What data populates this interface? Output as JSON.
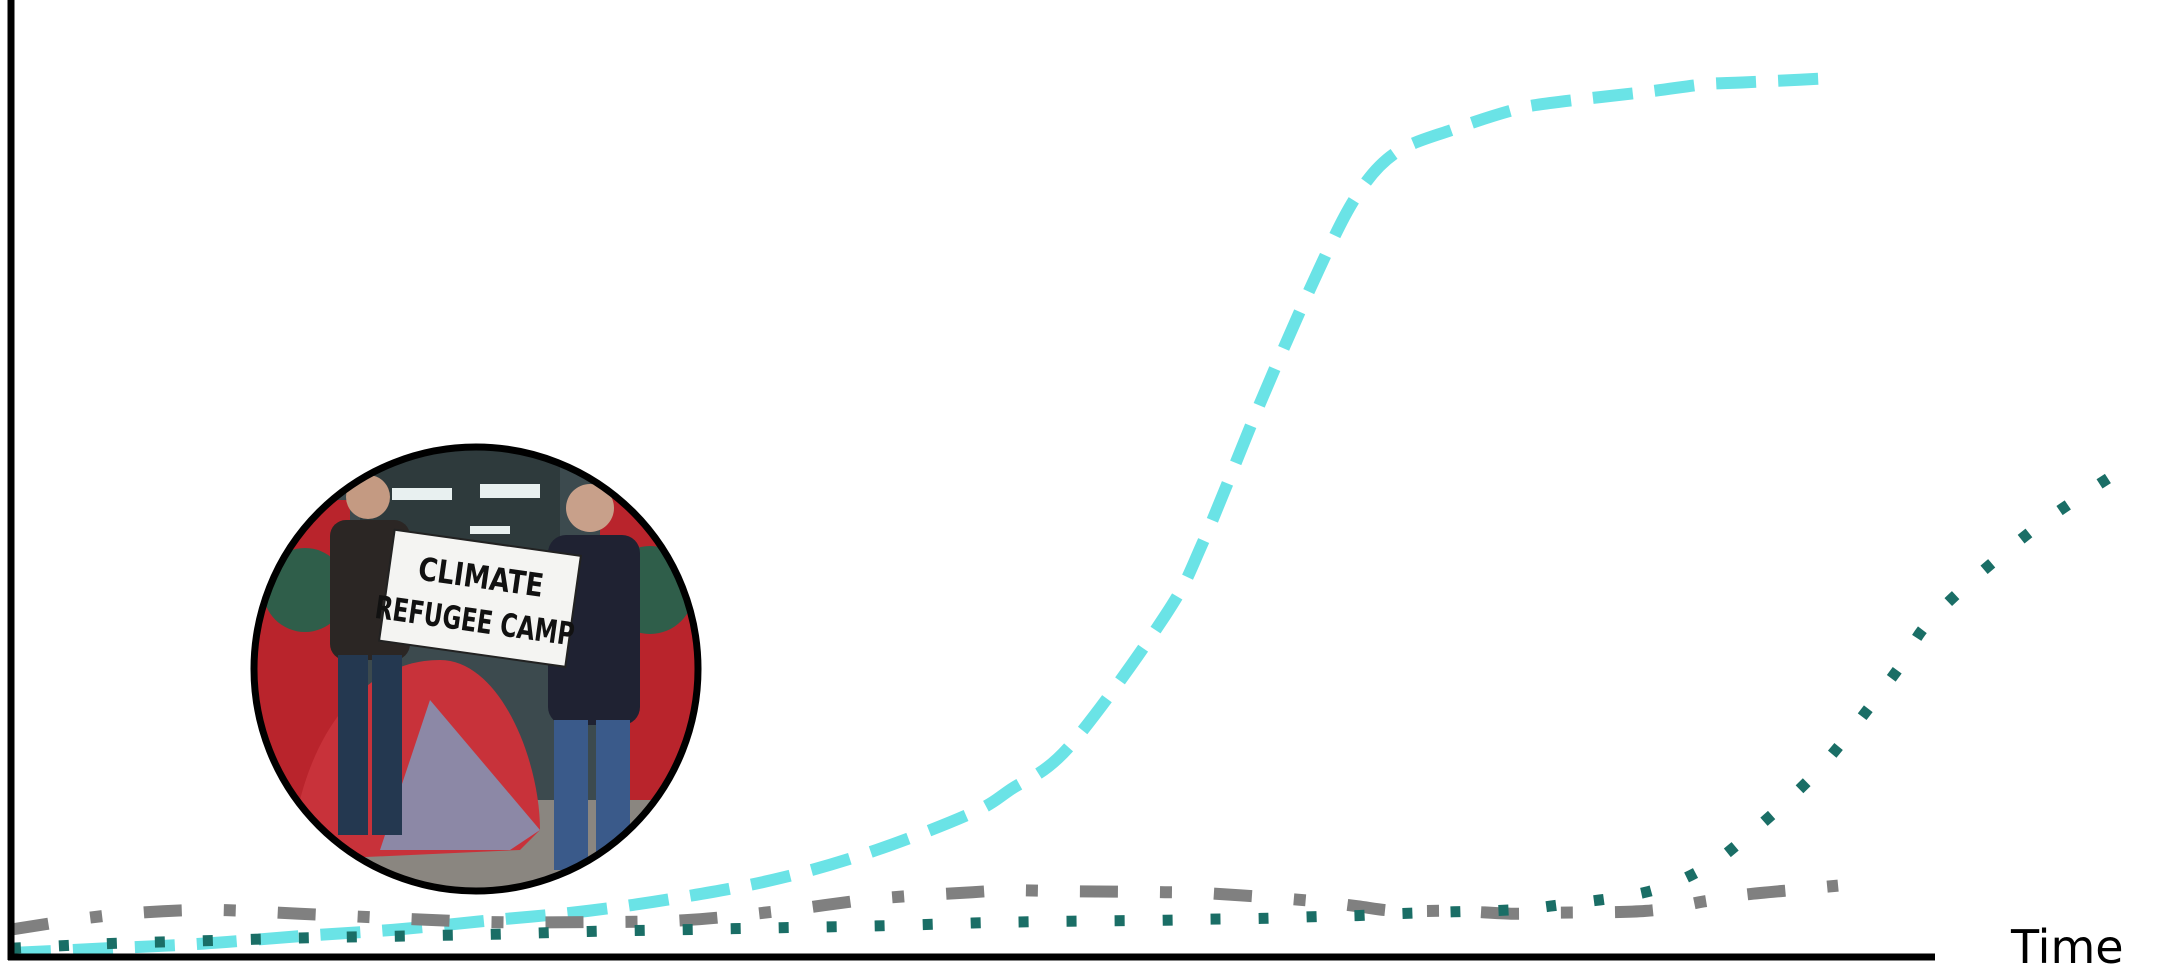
{
  "chart_data": {
    "type": "line",
    "xlabel": "Time",
    "ylabel": "",
    "title": "",
    "x": [
      0,
      5,
      10,
      15,
      20,
      25,
      30,
      35,
      40,
      45,
      50,
      52,
      55,
      60,
      62,
      65,
      68,
      70,
      72,
      75,
      78,
      80,
      85,
      88,
      90,
      93,
      95,
      98,
      100,
      105,
      110
    ],
    "xlim": [
      0,
      112
    ],
    "ylim": [
      0,
      100
    ],
    "grid": false,
    "legend": "none",
    "series": [
      {
        "style": "dashed",
        "color": "#6ae3e6",
        "values": [
          0,
          0.5,
          1,
          1.8,
          2.5,
          3.5,
          4.5,
          6,
          8,
          11,
          15,
          17.5,
          22,
          36,
          44,
          59,
          73,
          81,
          85.5,
          88,
          90,
          90.8,
          92,
          92.8,
          93,
          93.3,
          93.5,
          null,
          null,
          null,
          null
        ]
      },
      {
        "style": "dashdot",
        "color": "#808080",
        "values": [
          2.5,
          4,
          4.6,
          4.2,
          3.7,
          3.3,
          3.3,
          3.5,
          4.5,
          5.8,
          6.5,
          6.7,
          6.6,
          6.5,
          6.4,
          6,
          5.5,
          5,
          4.5,
          4.5,
          4.2,
          4.3,
          4.5,
          5.5,
          6.2,
          6.8,
          7.2,
          null,
          null,
          null,
          null
        ]
      },
      {
        "style": "dotted",
        "color": "#1a6e66",
        "values": [
          0.5,
          1,
          1.3,
          1.6,
          1.8,
          2,
          2.3,
          2.5,
          2.7,
          2.9,
          3.2,
          3.3,
          3.4,
          3.5,
          3.6,
          3.7,
          3.9,
          4,
          4.2,
          4.4,
          4.6,
          5,
          6.5,
          9,
          12,
          17.5,
          22,
          30,
          36,
          45,
          52
        ]
      }
    ]
  },
  "inset_image": {
    "sign_line1": "CLIMATE",
    "sign_line2": "REFUGEE CAMP"
  }
}
